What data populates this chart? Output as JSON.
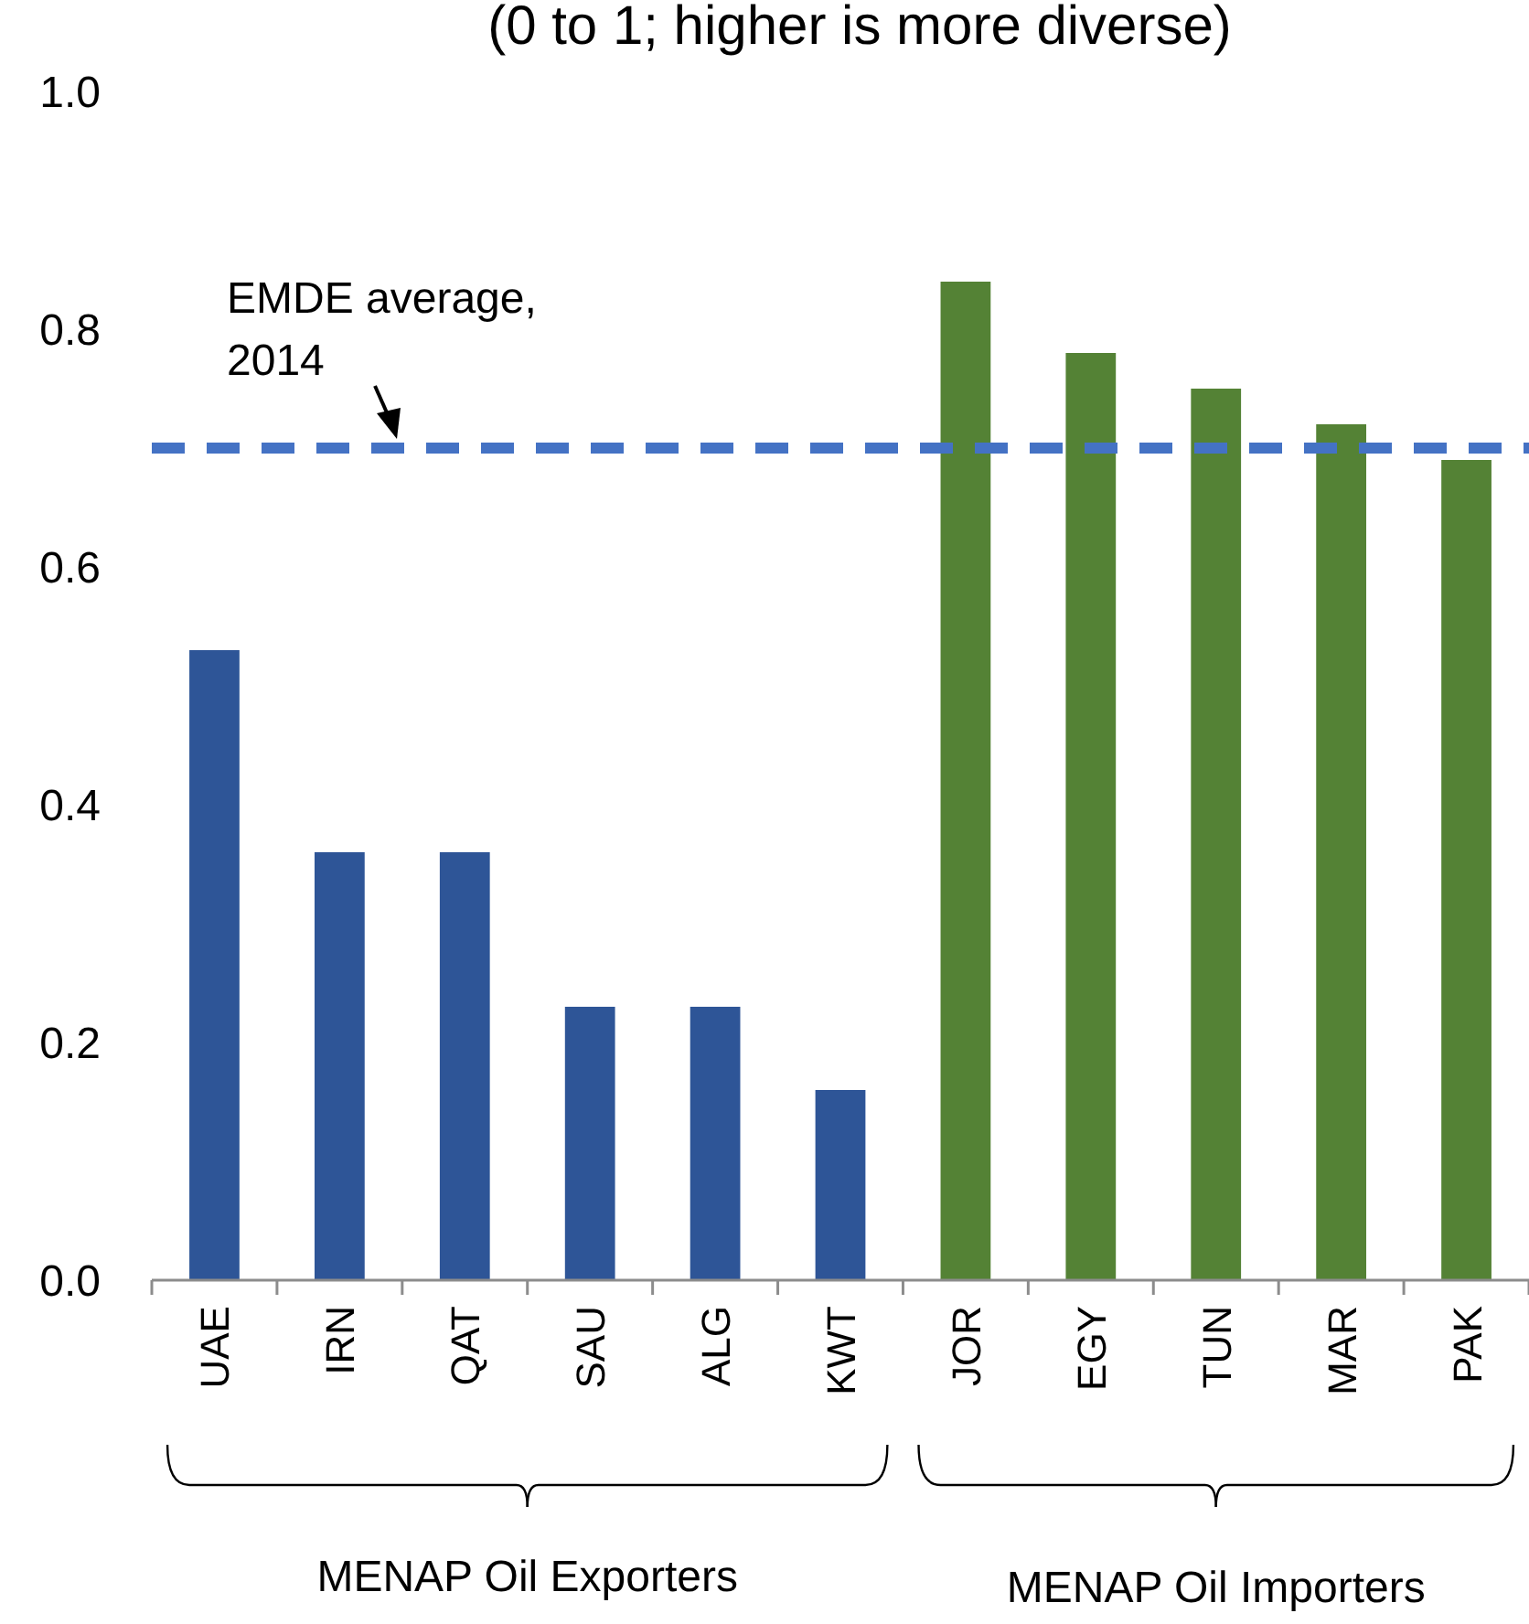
{
  "chart_data": {
    "type": "bar",
    "title": "(0 to 1; higher is more diverse)",
    "categories": [
      "UAE",
      "IRN",
      "QAT",
      "SAU",
      "ALG",
      "KWT",
      "JOR",
      "EGY",
      "TUN",
      "MAR",
      "PAK"
    ],
    "values": [
      0.53,
      0.36,
      0.36,
      0.23,
      0.23,
      0.16,
      0.84,
      0.78,
      0.75,
      0.72,
      0.69
    ],
    "colors": [
      "#2e5597",
      "#2e5597",
      "#2e5597",
      "#2e5597",
      "#2e5597",
      "#2e5597",
      "#548235",
      "#548235",
      "#548235",
      "#548235",
      "#548235"
    ],
    "ylim": [
      0,
      1
    ],
    "yticks": [
      {
        "value": 0,
        "label": "0.0"
      },
      0.2,
      0.4,
      0.6,
      0.8,
      {
        "value": 1,
        "label": "1.0"
      }
    ],
    "grid": false,
    "ref_lines": [
      {
        "axis": "y",
        "value": 0.7,
        "label": "EMDE average, 2014",
        "color": "#4472c4",
        "line_style": "dashed"
      }
    ],
    "annotations": [
      "MENAP Oil Exporters",
      "MENAP Oil Importers"
    ]
  }
}
